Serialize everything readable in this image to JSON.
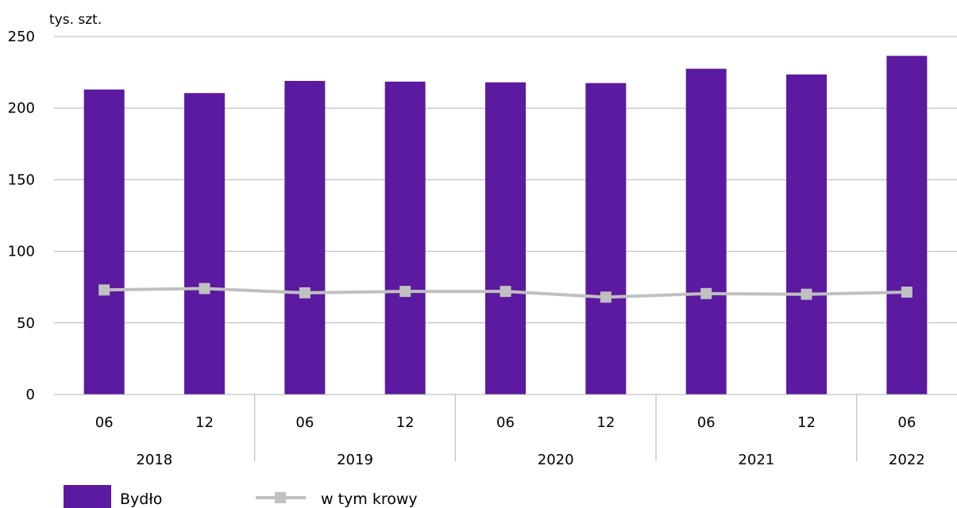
{
  "chart_data": {
    "type": "bar",
    "y_unit_label": "tys. szt.",
    "ylim": [
      0,
      250
    ],
    "y_ticks": [
      0,
      50,
      100,
      150,
      200,
      250
    ],
    "grid": true,
    "legend_position": "bottom-left",
    "categories": [
      "06",
      "12",
      "06",
      "12",
      "06",
      "12",
      "06",
      "12",
      "06"
    ],
    "year_groups": [
      {
        "label": "2018",
        "count": 2
      },
      {
        "label": "2019",
        "count": 2
      },
      {
        "label": "2020",
        "count": 2
      },
      {
        "label": "2021",
        "count": 2
      },
      {
        "label": "2022",
        "count": 1
      }
    ],
    "series": [
      {
        "name": "Bydło",
        "type": "bar",
        "color": "#5b1a9f",
        "values": [
          213,
          210.5,
          219,
          218.5,
          218,
          217.5,
          227.5,
          223.5,
          236.5
        ]
      },
      {
        "name": "w tym krowy",
        "type": "line",
        "color": "#c0c0c0",
        "values": [
          73,
          74,
          71,
          72,
          72,
          68,
          70.5,
          70,
          71.5
        ]
      }
    ]
  }
}
